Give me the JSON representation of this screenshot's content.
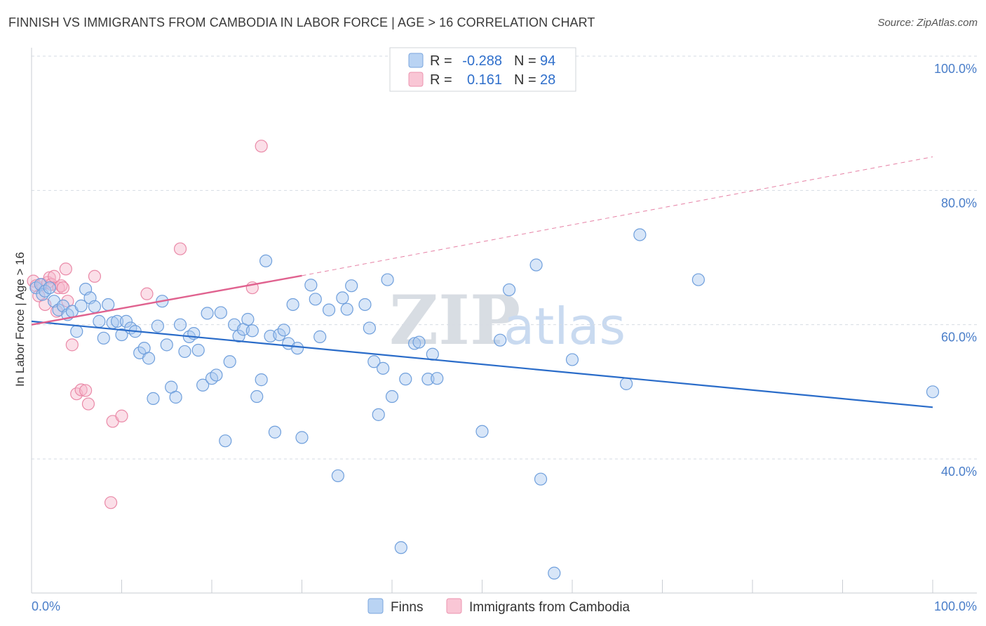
{
  "title": "FINNISH VS IMMIGRANTS FROM CAMBODIA IN LABOR FORCE | AGE > 16 CORRELATION CHART",
  "source": "Source: ZipAtlas.com",
  "watermark": {
    "zip": "ZIP",
    "atlas": "atlas"
  },
  "colors": {
    "finns_fill": "#a9c8f0",
    "finns_stroke": "#6f9fdc",
    "finns_line": "#2a6cc9",
    "camb_fill": "#f7b8cb",
    "camb_stroke": "#ea8aa8",
    "camb_line": "#e0628f",
    "grid": "#d6dbe3",
    "axis_text": "#4a7ec9"
  },
  "legend": {
    "rows": [
      {
        "r_label": "R =",
        "r_value": "-0.288",
        "n_label": "N =",
        "n_value": "94"
      },
      {
        "r_label": "R =",
        "r_value": "0.161",
        "n_label": "N =",
        "n_value": "28"
      }
    ]
  },
  "chart_data": {
    "type": "scatter",
    "xlabel": "",
    "ylabel": "In Labor Force | Age > 16",
    "xlim": [
      0,
      100
    ],
    "ylim": [
      22,
      103
    ],
    "x_tick_labels": [
      {
        "value": 0,
        "label": "0.0%"
      },
      {
        "value": 100,
        "label": "100.0%"
      }
    ],
    "y_tick_labels": [
      {
        "value": 100,
        "label": "100.0%"
      },
      {
        "value": 80,
        "label": "80.0%"
      },
      {
        "value": 60,
        "label": "60.0%"
      },
      {
        "value": 40,
        "label": "40.0%"
      }
    ],
    "legend_entries": [
      "Finns",
      "Immigrants from Cambodia"
    ],
    "series": [
      {
        "name": "Finns",
        "trend": {
          "x0": 0,
          "y0": 60.5,
          "x1": 100,
          "y1": 47.7
        },
        "points": [
          [
            0.5,
            65.5
          ],
          [
            1,
            66
          ],
          [
            1.2,
            64.5
          ],
          [
            1.5,
            65
          ],
          [
            2,
            65.5
          ],
          [
            2.5,
            63.5
          ],
          [
            3,
            62.2
          ],
          [
            3.5,
            62.8
          ],
          [
            4,
            61.5
          ],
          [
            4.5,
            62
          ],
          [
            5,
            59
          ],
          [
            5.5,
            62.8
          ],
          [
            6,
            65.3
          ],
          [
            6.5,
            64
          ],
          [
            7,
            62.7
          ],
          [
            7.5,
            60.5
          ],
          [
            8,
            58
          ],
          [
            8.5,
            63
          ],
          [
            9,
            60.3
          ],
          [
            9.5,
            60.5
          ],
          [
            10,
            58.5
          ],
          [
            10.5,
            60.5
          ],
          [
            11,
            59.5
          ],
          [
            11.5,
            59
          ],
          [
            12,
            55.8
          ],
          [
            12.5,
            56.5
          ],
          [
            13,
            55
          ],
          [
            13.5,
            49
          ],
          [
            14,
            59.8
          ],
          [
            14.5,
            63.5
          ],
          [
            15,
            57
          ],
          [
            15.5,
            50.7
          ],
          [
            16,
            49.2
          ],
          [
            16.5,
            60
          ],
          [
            17,
            56
          ],
          [
            17.5,
            58.2
          ],
          [
            18,
            58.7
          ],
          [
            18.5,
            56.2
          ],
          [
            19,
            51
          ],
          [
            19.5,
            61.7
          ],
          [
            20,
            52
          ],
          [
            20.5,
            52.5
          ],
          [
            21,
            61.8
          ],
          [
            21.5,
            42.7
          ],
          [
            22,
            54.5
          ],
          [
            22.5,
            60
          ],
          [
            23,
            58.3
          ],
          [
            23.5,
            59.3
          ],
          [
            24,
            60.8
          ],
          [
            24.5,
            59.1
          ],
          [
            25,
            49.3
          ],
          [
            25.5,
            51.8
          ],
          [
            26,
            69.5
          ],
          [
            26.5,
            58.3
          ],
          [
            27,
            44
          ],
          [
            27.5,
            58.5
          ],
          [
            28,
            59.2
          ],
          [
            28.5,
            57.2
          ],
          [
            29,
            63
          ],
          [
            29.5,
            56.5
          ],
          [
            30,
            43.2
          ],
          [
            31,
            65.9
          ],
          [
            31.5,
            63.8
          ],
          [
            32,
            58.2
          ],
          [
            33,
            62.2
          ],
          [
            34,
            37.5
          ],
          [
            34.5,
            64
          ],
          [
            35,
            62.3
          ],
          [
            35.5,
            65.8
          ],
          [
            37,
            63
          ],
          [
            37.5,
            59.5
          ],
          [
            38,
            54.5
          ],
          [
            38.5,
            46.6
          ],
          [
            39,
            53.5
          ],
          [
            39.5,
            66.7
          ],
          [
            40,
            49.3
          ],
          [
            41,
            26.8
          ],
          [
            41.5,
            51.9
          ],
          [
            42.5,
            57.2
          ],
          [
            43,
            57.4
          ],
          [
            44,
            51.9
          ],
          [
            44.5,
            55.6
          ],
          [
            45,
            52
          ],
          [
            50,
            44.1
          ],
          [
            52,
            57.7
          ],
          [
            53,
            65.2
          ],
          [
            56,
            68.9
          ],
          [
            56.5,
            37
          ],
          [
            58,
            23
          ],
          [
            60,
            54.8
          ],
          [
            66,
            51.2
          ],
          [
            67.5,
            73.4
          ],
          [
            74,
            66.7
          ],
          [
            100,
            50
          ]
        ]
      },
      {
        "name": "Immigrants from Cambodia",
        "trend": {
          "x0": 0,
          "y0": 60,
          "x1": 30,
          "y1": 67.3,
          "dash_x1": 100,
          "dash_y1": 85
        },
        "points": [
          [
            0.2,
            66.5
          ],
          [
            0.5,
            65.8
          ],
          [
            0.8,
            64.3
          ],
          [
            1.2,
            66
          ],
          [
            1.5,
            63
          ],
          [
            1.8,
            66.3
          ],
          [
            2,
            67
          ],
          [
            2.2,
            66
          ],
          [
            2.5,
            67.2
          ],
          [
            2.8,
            62
          ],
          [
            3,
            65.5
          ],
          [
            3.3,
            65.8
          ],
          [
            3.5,
            65.5
          ],
          [
            3.8,
            68.3
          ],
          [
            4,
            63.5
          ],
          [
            4.5,
            57
          ],
          [
            5,
            49.7
          ],
          [
            5.5,
            50.3
          ],
          [
            6,
            50.2
          ],
          [
            6.3,
            48.2
          ],
          [
            7,
            67.2
          ],
          [
            9,
            45.6
          ],
          [
            8.8,
            33.5
          ],
          [
            10,
            46.4
          ],
          [
            12.8,
            64.6
          ],
          [
            16.5,
            71.3
          ],
          [
            24.5,
            65.5
          ],
          [
            25.5,
            86.6
          ]
        ]
      }
    ]
  }
}
